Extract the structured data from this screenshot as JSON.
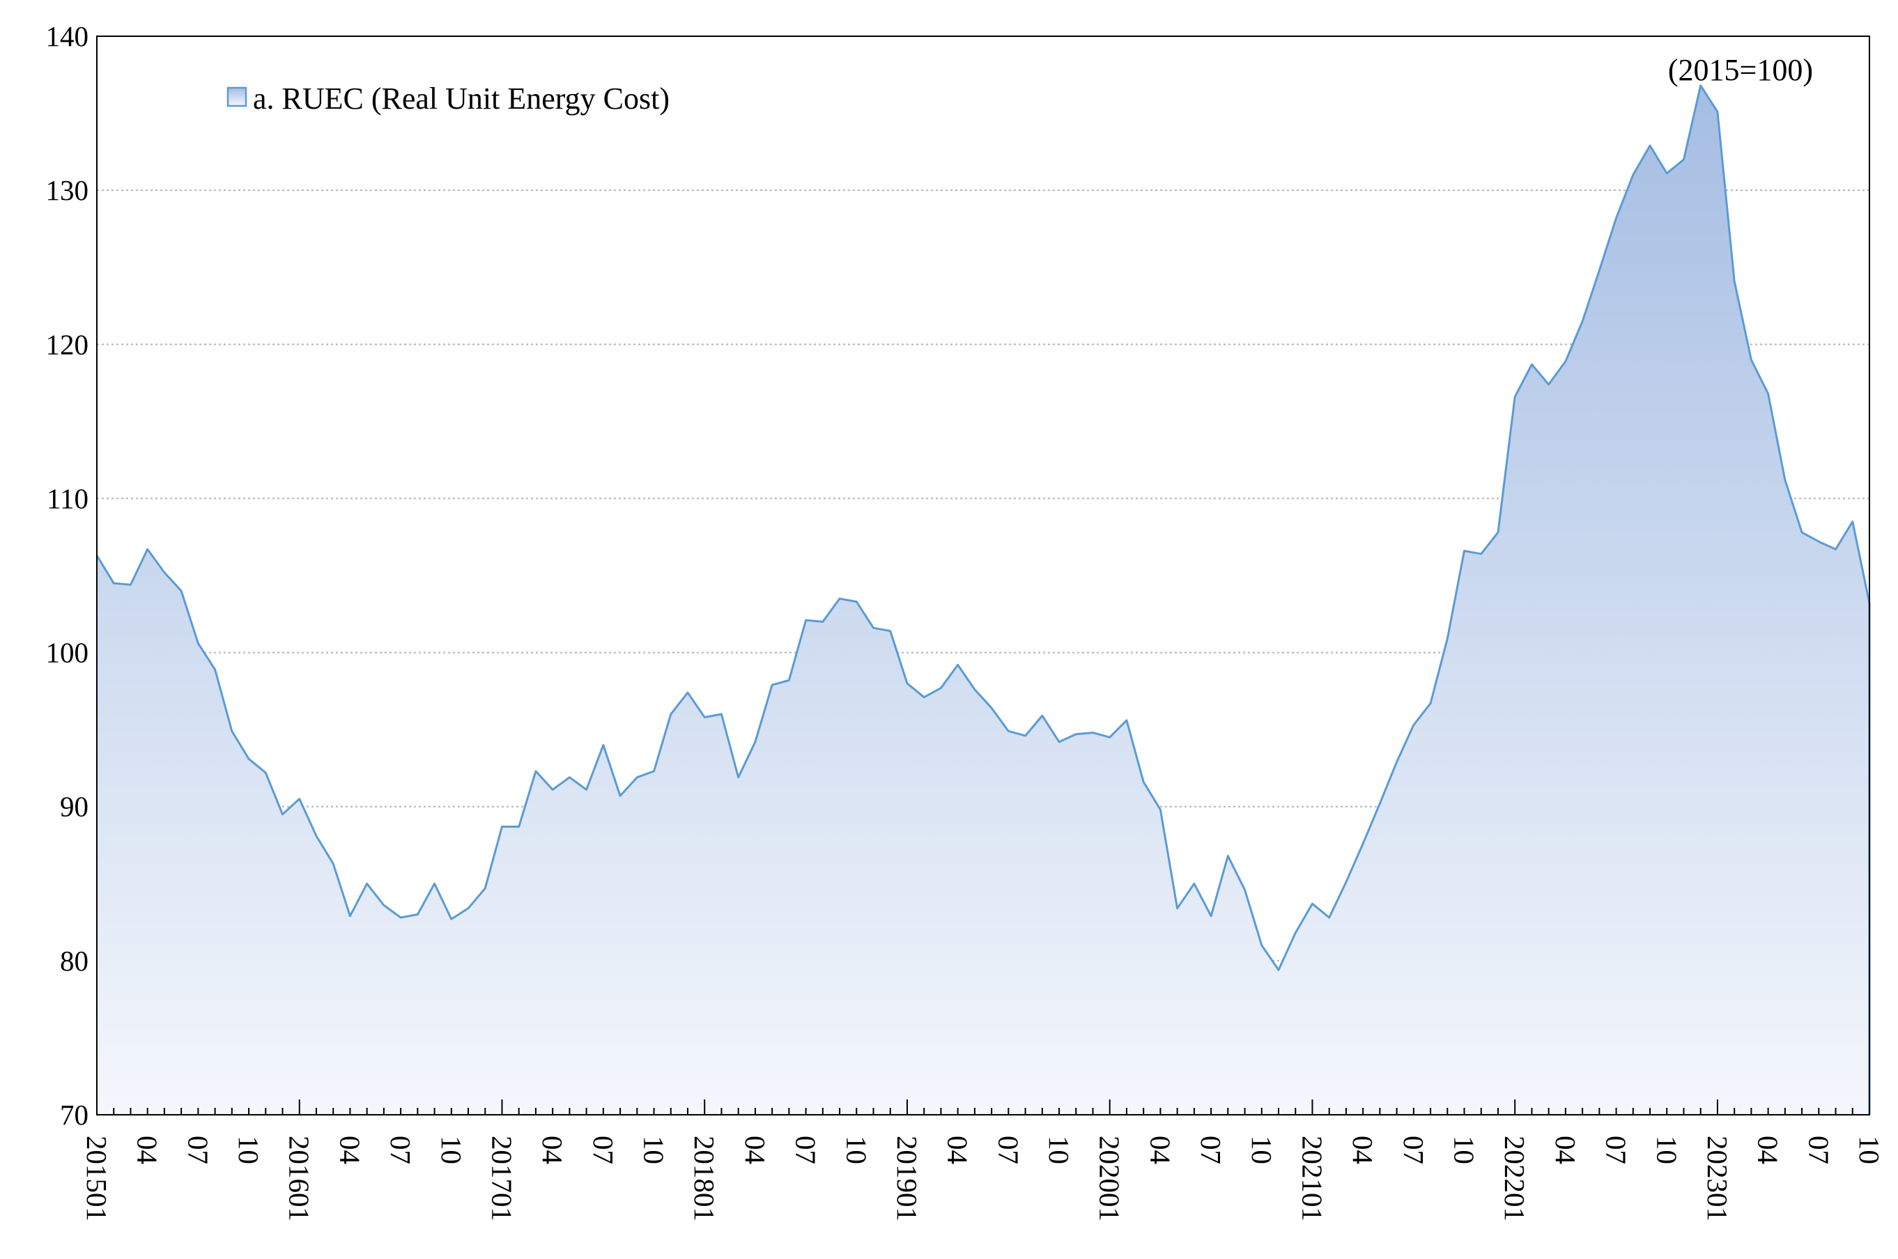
{
  "chart_data": {
    "type": "area",
    "legend": {
      "label": "a. RUEC (Real Unit Energy Cost)",
      "position": "top-left"
    },
    "annotation": "(2015=100)",
    "grid": true,
    "colors": {
      "line": "#5b9bd5",
      "fill_top": "#a5bde3",
      "fill_bottom": "#f4f7fc",
      "grid": "#b3b3b3",
      "axis": "#000000"
    },
    "ylim": [
      70,
      140
    ],
    "yticks": [
      "70",
      "80",
      "90",
      "100",
      "110",
      "120",
      "130",
      "140"
    ],
    "x_tick_labels": [
      "201501",
      "04",
      "07",
      "10",
      "201601",
      "04",
      "07",
      "10",
      "201701",
      "04",
      "07",
      "10",
      "201801",
      "04",
      "07",
      "10",
      "201901",
      "04",
      "07",
      "10",
      "202001",
      "04",
      "07",
      "10",
      "202101",
      "04",
      "07",
      "10",
      "202201",
      "04",
      "07",
      "10",
      "202301",
      "04",
      "07",
      "10"
    ],
    "x": [
      "2015-01",
      "2015-02",
      "2015-03",
      "2015-04",
      "2015-05",
      "2015-06",
      "2015-07",
      "2015-08",
      "2015-09",
      "2015-10",
      "2015-11",
      "2015-12",
      "2016-01",
      "2016-02",
      "2016-03",
      "2016-04",
      "2016-05",
      "2016-06",
      "2016-07",
      "2016-08",
      "2016-09",
      "2016-10",
      "2016-11",
      "2016-12",
      "2017-01",
      "2017-02",
      "2017-03",
      "2017-04",
      "2017-05",
      "2017-06",
      "2017-07",
      "2017-08",
      "2017-09",
      "2017-10",
      "2017-11",
      "2017-12",
      "2018-01",
      "2018-02",
      "2018-03",
      "2018-04",
      "2018-05",
      "2018-06",
      "2018-07",
      "2018-08",
      "2018-09",
      "2018-10",
      "2018-11",
      "2018-12",
      "2019-01",
      "2019-02",
      "2019-03",
      "2019-04",
      "2019-05",
      "2019-06",
      "2019-07",
      "2019-08",
      "2019-09",
      "2019-10",
      "2019-11",
      "2019-12",
      "2020-01",
      "2020-02",
      "2020-03",
      "2020-04",
      "2020-05",
      "2020-06",
      "2020-07",
      "2020-08",
      "2020-09",
      "2020-10",
      "2020-11",
      "2020-12",
      "2021-01",
      "2021-02",
      "2021-03",
      "2021-04",
      "2021-05",
      "2021-06",
      "2021-07",
      "2021-08",
      "2021-09",
      "2021-10",
      "2021-11",
      "2021-12",
      "2022-01",
      "2022-02",
      "2022-03",
      "2022-04",
      "2022-05",
      "2022-06",
      "2022-07",
      "2022-08",
      "2022-09",
      "2022-10",
      "2022-11",
      "2022-12",
      "2023-01",
      "2023-02",
      "2023-03",
      "2023-04",
      "2023-05",
      "2023-06",
      "2023-07",
      "2023-08",
      "2023-09",
      "2023-10"
    ],
    "series": [
      {
        "name": "a. RUEC (Real Unit Energy Cost)",
        "values": [
          106.3,
          104.5,
          104.4,
          106.7,
          105.2,
          104.0,
          100.6,
          98.9,
          94.9,
          93.1,
          92.2,
          89.5,
          90.5,
          88.1,
          86.3,
          82.9,
          85.0,
          83.6,
          82.8,
          83.0,
          85.0,
          82.7,
          83.4,
          84.7,
          88.7,
          88.7,
          92.3,
          91.1,
          91.9,
          91.1,
          94.0,
          90.7,
          91.9,
          92.3,
          96.0,
          97.4,
          95.8,
          96.0,
          91.9,
          94.2,
          97.9,
          98.2,
          102.1,
          102.0,
          103.5,
          103.3,
          101.6,
          101.4,
          98.0,
          97.1,
          97.7,
          99.2,
          97.6,
          96.4,
          94.9,
          94.6,
          95.9,
          94.2,
          94.7,
          94.8,
          94.5,
          95.6,
          91.6,
          89.8,
          83.4,
          85.0,
          82.9,
          86.8,
          84.6,
          81.0,
          79.4,
          81.8,
          83.7,
          82.8,
          85.1,
          87.6,
          90.2,
          92.9,
          95.3,
          96.7,
          100.9,
          106.6,
          106.4,
          107.8,
          116.6,
          118.7,
          117.4,
          118.9,
          121.5,
          124.8,
          128.2,
          131.0,
          132.9,
          131.1,
          132.0,
          136.8,
          135.1,
          124.1,
          119.0,
          116.8,
          111.2,
          107.8,
          107.2,
          106.7,
          108.5,
          103.2
        ]
      }
    ]
  }
}
